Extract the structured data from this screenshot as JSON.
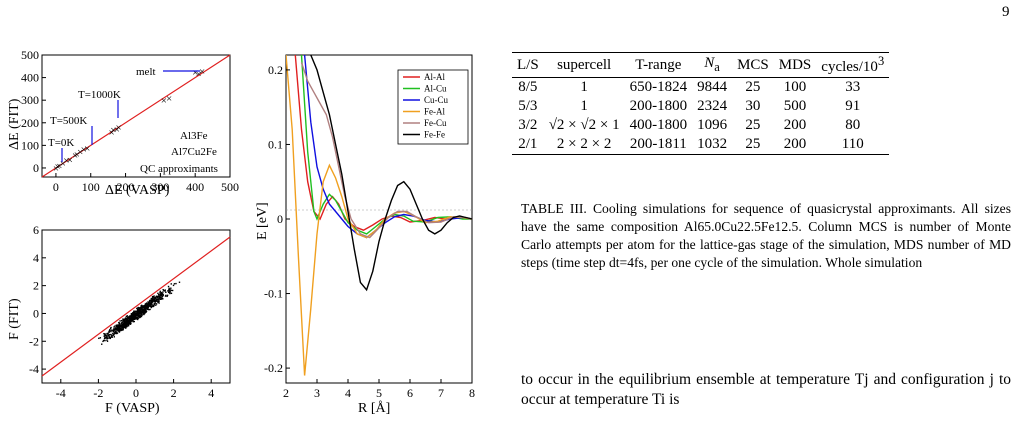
{
  "page_number": "9",
  "figure": {
    "panel_a": {
      "ylabel": "ΔE (FIT)",
      "xlabel": "ΔE (VASP)",
      "xticks": [
        "0",
        "100",
        "200",
        "300",
        "400",
        "500"
      ],
      "yticks": [
        "0",
        "100",
        "200",
        "300",
        "400",
        "500"
      ],
      "annotations": [
        "melt",
        "T=1000K",
        "T=500K",
        "T=0K",
        "Al3Fe",
        "Al7Cu2Fe",
        "QC approximants"
      ]
    },
    "panel_b": {
      "ylabel": "F (FIT)",
      "xlabel": "F (VASP)",
      "xticks": [
        "-4",
        "-2",
        "0",
        "2",
        "4"
      ],
      "yticks": [
        "-4",
        "-2",
        "0",
        "2",
        "4",
        "6"
      ]
    },
    "panel_c": {
      "ylabel": "E [eV]",
      "xlabel": "R [Å]",
      "xticks": [
        "2",
        "3",
        "4",
        "5",
        "6",
        "7",
        "8"
      ],
      "yticks": [
        "-0.2",
        "-0.1",
        "0",
        "0.1",
        "0.2"
      ],
      "legend": [
        {
          "name": "Al-Al",
          "color": "#e02020"
        },
        {
          "name": "Al-Cu",
          "color": "#20c020"
        },
        {
          "name": "Cu-Cu",
          "color": "#1010e0"
        },
        {
          "name": "Fe-Al",
          "color": "#f0a020"
        },
        {
          "name": "Fe-Cu",
          "color": "#b08080"
        },
        {
          "name": "Fe-Fe",
          "color": "#000000"
        }
      ]
    }
  },
  "chart_data": [
    {
      "type": "scatter",
      "xlabel": "ΔE (VASP)",
      "ylabel": "ΔE (FIT)",
      "xlim": [
        -40,
        500
      ],
      "ylim": [
        -40,
        500
      ],
      "points": [
        [
          0,
          0
        ],
        [
          5,
          8
        ],
        [
          10,
          12
        ],
        [
          20,
          22
        ],
        [
          30,
          35
        ],
        [
          40,
          38
        ],
        [
          55,
          58
        ],
        [
          60,
          62
        ],
        [
          70,
          72
        ],
        [
          80,
          85
        ],
        [
          90,
          88
        ],
        [
          160,
          160
        ],
        [
          165,
          170
        ],
        [
          175,
          172
        ],
        [
          180,
          182
        ],
        [
          310,
          300
        ],
        [
          325,
          310
        ],
        [
          400,
          425
        ],
        [
          410,
          418
        ],
        [
          420,
          430
        ]
      ]
    },
    {
      "type": "scatter",
      "xlabel": "F (VASP)",
      "ylabel": "F (FIT)",
      "xlim": [
        -5,
        5
      ],
      "ylim": [
        -5,
        6
      ]
    },
    {
      "type": "line",
      "xlabel": "R [Å]",
      "ylabel": "E [eV]",
      "xlim": [
        2,
        8
      ],
      "ylim": [
        -0.22,
        0.22
      ],
      "series": [
        {
          "name": "Al-Al",
          "x": [
            2.3,
            2.5,
            2.7,
            2.9,
            3.1,
            3.3,
            3.5,
            3.7,
            3.9,
            4.2,
            4.5,
            4.8,
            5.1,
            5.4,
            5.7,
            6.0,
            6.4,
            6.8,
            7.2,
            7.6,
            8.0
          ],
          "y": [
            0.22,
            0.12,
            0.05,
            0.01,
            0.0,
            0.02,
            0.03,
            0.02,
            0.0,
            -0.01,
            -0.015,
            -0.008,
            0.0,
            0.004,
            0.002,
            -0.004,
            -0.002,
            0.002,
            0.0,
            0.002,
            0.0
          ]
        },
        {
          "name": "Al-Cu",
          "x": [
            2.5,
            2.7,
            2.9,
            3.0,
            3.2,
            3.4,
            3.6,
            3.8,
            4.0,
            4.3,
            4.6,
            4.9,
            5.2,
            5.5,
            5.8,
            6.1,
            6.5,
            6.9,
            7.3,
            7.7,
            8.0
          ],
          "y": [
            0.22,
            0.09,
            0.01,
            0.0,
            0.02,
            0.033,
            0.025,
            0.01,
            -0.005,
            -0.015,
            -0.02,
            -0.01,
            0.0,
            0.006,
            0.004,
            -0.003,
            -0.004,
            0.002,
            0.003,
            0.0,
            0.0
          ]
        },
        {
          "name": "Cu-Cu",
          "x": [
            2.6,
            2.8,
            3.0,
            3.2,
            3.4,
            3.6,
            3.8,
            4.0,
            4.3,
            4.6,
            4.9,
            5.2,
            5.5,
            5.8,
            6.1,
            6.5,
            6.9,
            7.3,
            7.7,
            8.0
          ],
          "y": [
            0.22,
            0.13,
            0.07,
            0.04,
            0.02,
            0.01,
            0.0,
            -0.01,
            -0.02,
            -0.025,
            -0.015,
            -0.005,
            0.003,
            0.006,
            0.004,
            -0.002,
            -0.004,
            0.0,
            0.002,
            0.0
          ]
        },
        {
          "name": "Fe-Al",
          "x": [
            2.0,
            2.2,
            2.4,
            2.6,
            2.8,
            3.0,
            3.2,
            3.4,
            3.6,
            3.8,
            4.0,
            4.3,
            4.6,
            4.9,
            5.2,
            5.5,
            5.8,
            6.1,
            6.5,
            6.9,
            7.3,
            7.7,
            8.0
          ],
          "y": [
            0.22,
            0.12,
            -0.05,
            -0.21,
            -0.12,
            -0.02,
            0.05,
            0.072,
            0.055,
            0.03,
            0.0,
            -0.02,
            -0.025,
            -0.015,
            0.0,
            0.008,
            0.01,
            0.005,
            -0.005,
            -0.003,
            0.003,
            0.002,
            0.0
          ]
        },
        {
          "name": "Fe-Cu",
          "x": [
            2.5,
            2.7,
            2.9,
            3.1,
            3.3,
            3.5,
            3.7,
            3.9,
            4.1,
            4.4,
            4.7,
            5.0,
            5.3,
            5.6,
            5.9,
            6.2,
            6.6,
            7.0,
            7.4,
            7.8,
            8.0
          ],
          "y": [
            0.21,
            0.185,
            0.17,
            0.155,
            0.14,
            0.11,
            0.07,
            0.03,
            0.0,
            -0.02,
            -0.025,
            -0.012,
            0.002,
            0.01,
            0.01,
            0.003,
            -0.005,
            -0.004,
            0.003,
            0.002,
            0.0
          ]
        },
        {
          "name": "Fe-Fe",
          "x": [
            2.8,
            3.0,
            3.2,
            3.4,
            3.6,
            3.8,
            4.0,
            4.2,
            4.4,
            4.6,
            4.8,
            5.0,
            5.2,
            5.4,
            5.6,
            5.8,
            6.0,
            6.2,
            6.4,
            6.6,
            6.8,
            7.0,
            7.2,
            7.4,
            7.6,
            7.8,
            8.0
          ],
          "y": [
            0.22,
            0.2,
            0.17,
            0.14,
            0.1,
            0.06,
            0.01,
            -0.04,
            -0.085,
            -0.095,
            -0.07,
            -0.03,
            0.0,
            0.025,
            0.045,
            0.05,
            0.04,
            0.02,
            0.0,
            -0.015,
            -0.02,
            -0.015,
            -0.005,
            0.002,
            0.004,
            0.002,
            0.0
          ]
        }
      ]
    }
  ],
  "table": {
    "headers": [
      "L/S",
      "supercell",
      "T-range",
      "N_a",
      "MCS",
      "MDS",
      "cycles/10^3"
    ],
    "rows": [
      [
        "8/5",
        "1",
        "650-1824",
        "9844",
        "25",
        "100",
        "33"
      ],
      [
        "5/3",
        "1",
        "200-1800",
        "2324",
        "30",
        "500",
        "91"
      ],
      [
        "3/2",
        "√2 × √2 × 1",
        "400-1800",
        "1096",
        "25",
        "200",
        "80"
      ],
      [
        "2/1",
        "2 × 2 × 2",
        "200-1811",
        "1032",
        "25",
        "200",
        "110"
      ]
    ]
  },
  "caption": "TABLE III. Cooling simulations for sequence of quasicrystal approximants. All sizes have the same composition Al65.0Cu22.5Fe12.5. Column MCS is number of Monte Carlo attempts per atom for the lattice-gas stage of the simulation, MDS number of MD steps (time step dt=4fs, per one cycle of the simulation. Whole simulation",
  "body_text": "to occur in the equilibrium ensemble at temperature Tj and configuration j to occur at temperature Ti is"
}
